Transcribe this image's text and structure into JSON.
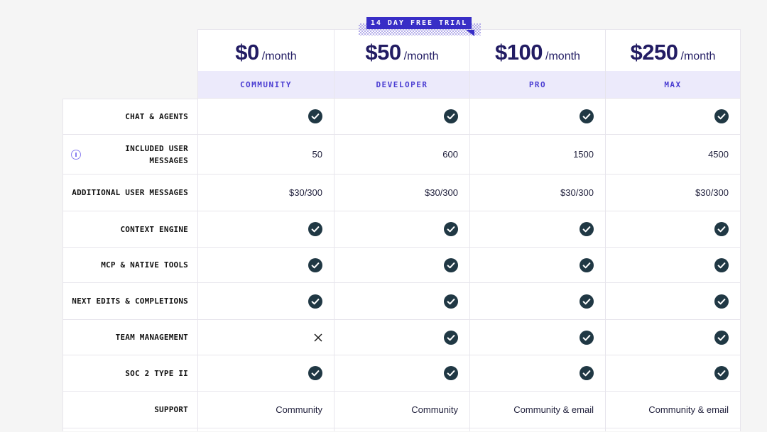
{
  "badge": {
    "label": "14 DAY FREE TRIAL"
  },
  "plans": [
    {
      "id": "community",
      "price": "$0",
      "period": "/month",
      "tier": "COMMUNITY"
    },
    {
      "id": "developer",
      "price": "$50",
      "period": "/month",
      "tier": "DEVELOPER"
    },
    {
      "id": "pro",
      "price": "$100",
      "period": "/month",
      "tier": "PRO"
    },
    {
      "id": "max",
      "price": "$250",
      "period": "/month",
      "tier": "MAX"
    }
  ],
  "features": [
    {
      "label": "CHAT & AGENTS",
      "info_icon": false,
      "values": [
        "check",
        "check",
        "check",
        "check"
      ]
    },
    {
      "label": "INCLUDED USER\nMESSAGES",
      "info_icon": true,
      "values": [
        "50",
        "600",
        "1500",
        "4500"
      ]
    },
    {
      "label": "ADDITIONAL USER MESSAGES",
      "info_icon": false,
      "values": [
        "$30/300",
        "$30/300",
        "$30/300",
        "$30/300"
      ]
    },
    {
      "label": "CONTEXT ENGINE",
      "info_icon": false,
      "values": [
        "check",
        "check",
        "check",
        "check"
      ]
    },
    {
      "label": "MCP & NATIVE TOOLS",
      "info_icon": false,
      "values": [
        "check",
        "check",
        "check",
        "check"
      ]
    },
    {
      "label": "NEXT EDITS & COMPLETIONS",
      "info_icon": false,
      "values": [
        "check",
        "check",
        "check",
        "check"
      ]
    },
    {
      "label": "TEAM MANAGEMENT",
      "info_icon": false,
      "values": [
        "x",
        "check",
        "check",
        "check"
      ]
    },
    {
      "label": "SOC 2 TYPE II",
      "info_icon": false,
      "values": [
        "check",
        "check",
        "check",
        "check"
      ]
    },
    {
      "label": "SUPPORT",
      "info_icon": false,
      "values": [
        "Community",
        "Community",
        "Community & email",
        "Community & email"
      ]
    }
  ],
  "colors": {
    "page_bg": "#f5f5f5",
    "accent": "#382ec6",
    "band_bg": "#eceafb",
    "band_text": "#4b3ed2",
    "price_text": "#221c63",
    "check_circle": "#203844",
    "border": "#e7e5ec"
  }
}
